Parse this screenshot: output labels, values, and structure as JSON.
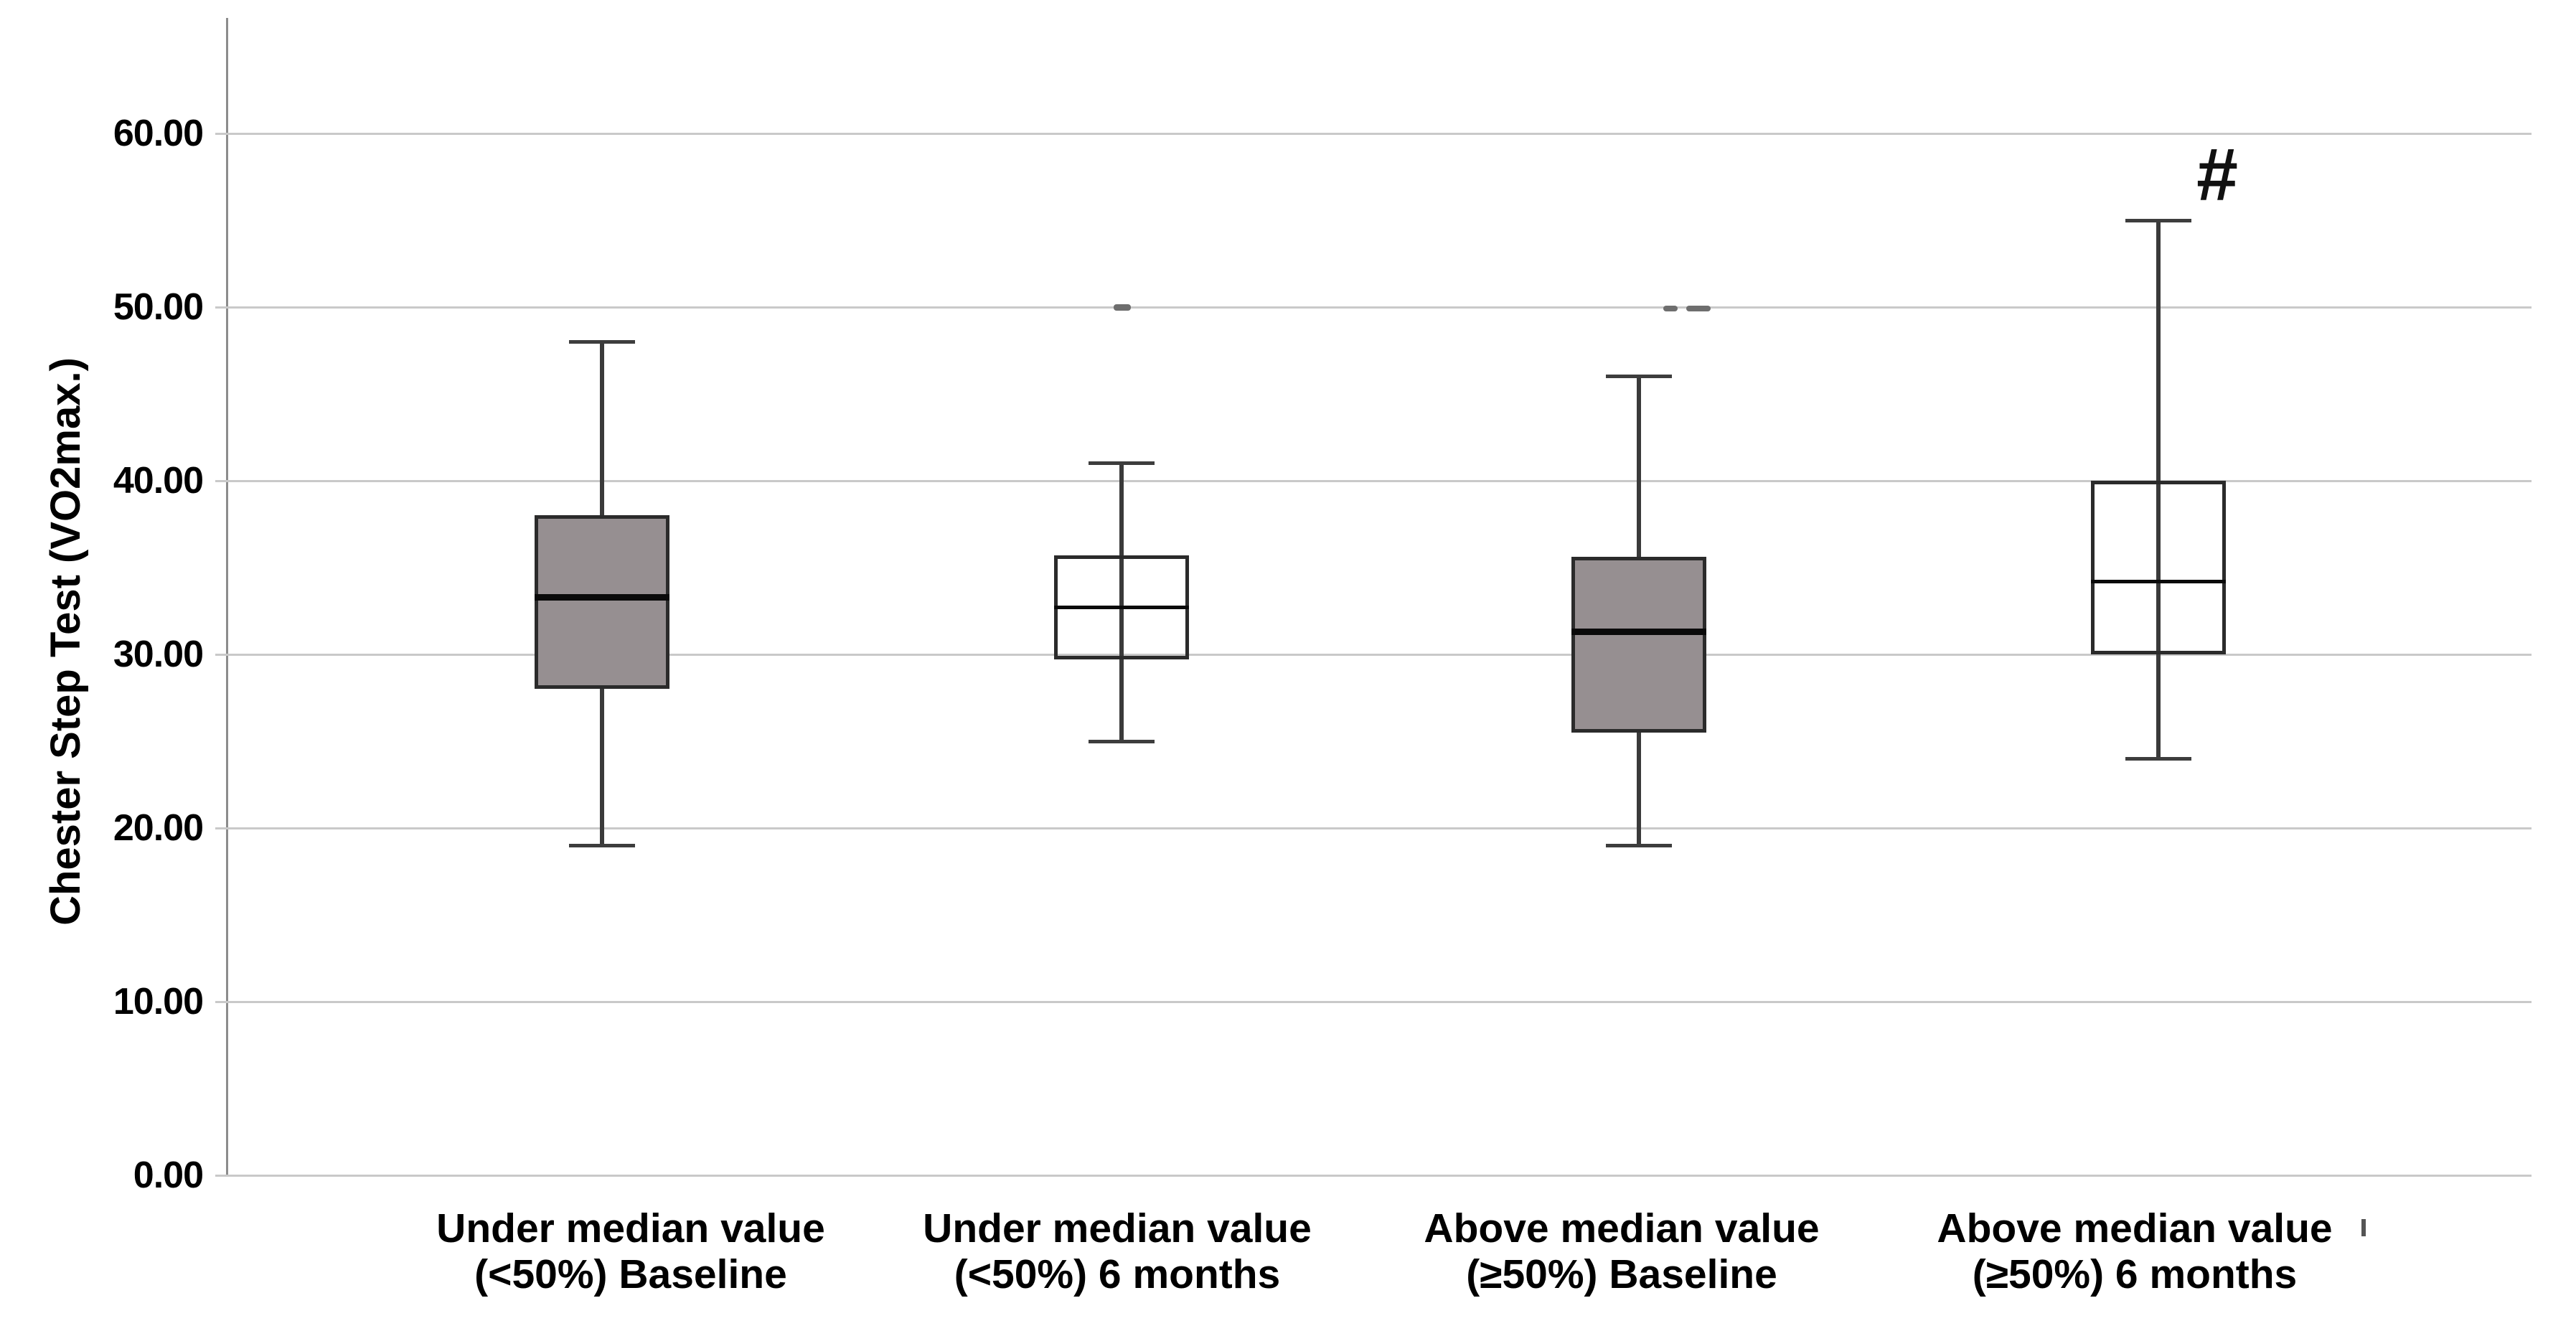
{
  "chart_data": {
    "type": "box",
    "title": "",
    "xlabel": "",
    "ylabel": "Chester Step Test (VO2max.)",
    "ylim": [
      0,
      66
    ],
    "grid": true,
    "legend": "none",
    "yticks": [
      {
        "value": 60,
        "label": "60.00"
      },
      {
        "value": 50,
        "label": "50.00"
      },
      {
        "value": 40,
        "label": "40.00"
      },
      {
        "value": 30,
        "label": "30.00"
      },
      {
        "value": 20,
        "label": "20.00"
      },
      {
        "value": 10,
        "label": "10.00"
      },
      {
        "value": 0,
        "label": "0.00"
      }
    ],
    "groups": [
      {
        "label": "Under median value (<50%) Baseline",
        "label_lines": [
          "Under median value",
          "(<50%) Baseline"
        ],
        "fill": "gray",
        "whisker_low": 19,
        "q1": 28,
        "median": 33.3,
        "q3": 38,
        "whisker_high": 48,
        "annotation": ""
      },
      {
        "label": "Under median value (<50%) 6 months",
        "label_lines": [
          "Under median value",
          "(<50%) 6 months"
        ],
        "fill": "white",
        "whisker_low": 25,
        "q1": 29.7,
        "median": 32.7,
        "q3": 35.7,
        "whisker_high": 41,
        "annotation": ""
      },
      {
        "label": "Above median value (≥50%) Baseline",
        "label_lines": [
          "Above median value",
          "(≥50%) Baseline"
        ],
        "fill": "gray",
        "whisker_low": 19,
        "q1": 25.5,
        "median": 31.3,
        "q3": 35.6,
        "whisker_high": 46,
        "annotation": ""
      },
      {
        "label": "Above median value (≥50%) 6 months",
        "label_lines": [
          "Above median value",
          "(≥50%) 6 months"
        ],
        "fill": "white",
        "whisker_low": 24,
        "q1": 30,
        "median": 34.2,
        "q3": 40,
        "whisker_high": 55,
        "annotation": "#"
      }
    ],
    "colors": {
      "box_fill_gray": "#968F91",
      "box_border": "#2b2b2b",
      "median": "#0a0a0a",
      "gridline": "#c9c9c9",
      "axis": "#8c8c8c",
      "text": "#000000",
      "background": "#ffffff"
    }
  }
}
